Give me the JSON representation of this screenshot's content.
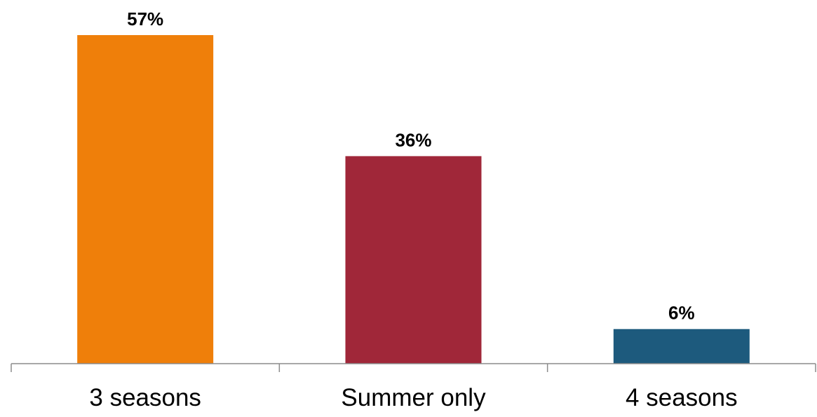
{
  "chart_data": {
    "type": "bar",
    "categories": [
      "3 seasons",
      "Summer only",
      "4 seasons"
    ],
    "values": [
      57,
      36,
      6
    ],
    "value_labels": [
      "57%",
      "36%",
      "6%"
    ],
    "colors": [
      "#EF7F0A",
      "#A02739",
      "#1D5A7D"
    ],
    "title": "",
    "xlabel": "",
    "ylabel": "",
    "ylim": [
      0,
      57
    ],
    "grid": false,
    "legend": "none"
  }
}
